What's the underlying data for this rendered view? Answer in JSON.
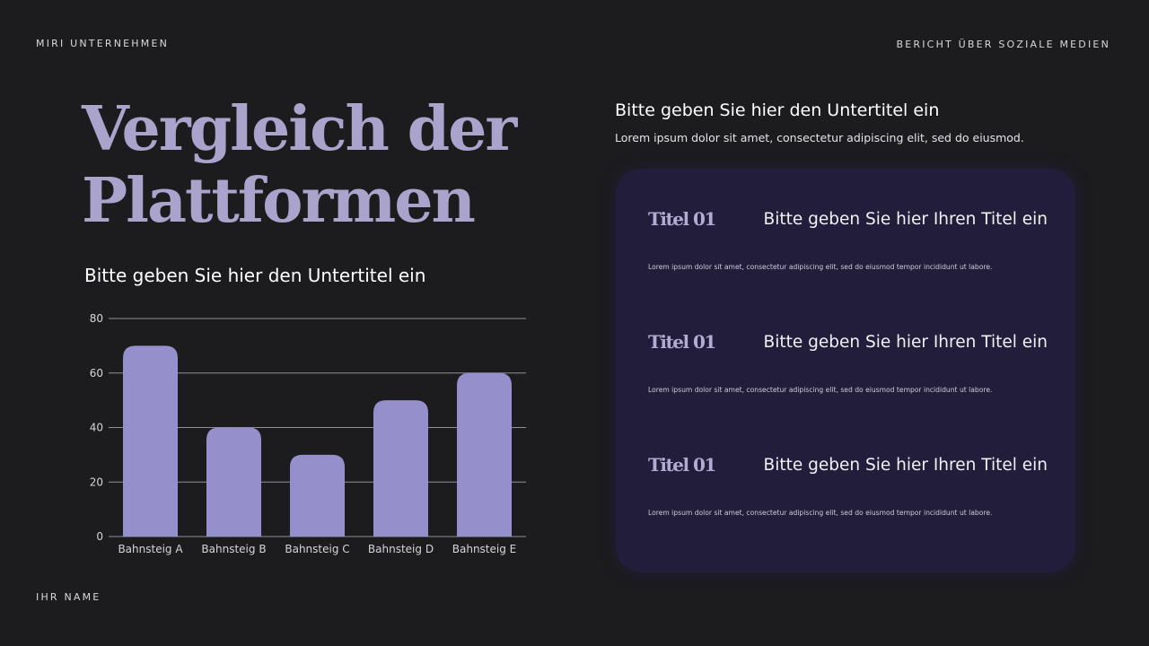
{
  "header": {
    "company": "MIRI UNTERNEHMEN",
    "report": "BERICHT ÜBER SOZIALE MEDIEN"
  },
  "footer": {
    "name": "IHR NAME"
  },
  "left": {
    "title_lines": [
      "Vergleich der",
      "Plattformen"
    ],
    "subtitle": "Bitte geben Sie hier den Untertitel ein"
  },
  "right": {
    "subtitle": "Bitte geben Sie hier den Untertitel ein",
    "description": "Lorem ipsum dolor sit amet, consectetur adipiscing elit, sed do eiusmod.",
    "items": [
      {
        "label": "Titel 01",
        "title": "Bitte geben Sie hier Ihren Titel ein",
        "text": "Lorem ipsum dolor sit amet, consectetur adipiscing elit, sed do eiusmod tempor incididunt ut labore."
      },
      {
        "label": "Titel 01",
        "title": "Bitte geben Sie hier Ihren Titel ein",
        "text": "Lorem ipsum dolor sit amet, consectetur adipiscing elit, sed do eiusmod tempor incididunt ut labore."
      },
      {
        "label": "Titel 01",
        "title": "Bitte geben Sie hier Ihren Titel ein",
        "text": "Lorem ipsum dolor sit amet, consectetur adipiscing elit, sed do eiusmod tempor incididunt ut labore."
      }
    ]
  },
  "colors": {
    "background": "#1c1b1e",
    "title": "#aaa3cb",
    "bar": "#9590cc",
    "panel": "#211d3b",
    "gridline": "#8f8f96"
  },
  "chart_data": {
    "type": "bar",
    "categories": [
      "Bahnsteig A",
      "Bahnsteig B",
      "Bahnsteig C",
      "Bahnsteig D",
      "Bahnsteig E"
    ],
    "values": [
      70,
      40,
      30,
      50,
      60
    ],
    "ylim": [
      0,
      80
    ],
    "yticks": [
      0,
      20,
      40,
      60,
      80
    ],
    "grid": true,
    "title": "",
    "xlabel": "",
    "ylabel": ""
  }
}
